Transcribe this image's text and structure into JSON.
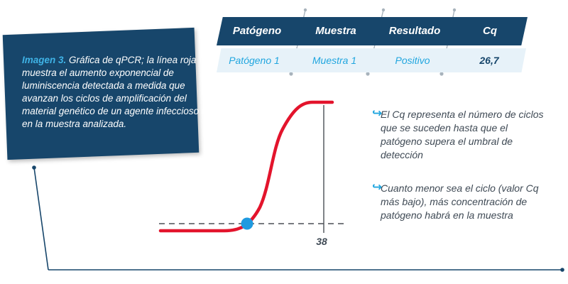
{
  "caption": {
    "label": "Imagen 3.",
    "text": " Gráfica de qPCR; la línea roja muestra el aumento exponencial de luminiscencia detectada a medida que avanzan los ciclos de amplificación del material genético de un agente infeccioso en la muestra analizada."
  },
  "table": {
    "headers": [
      "Patógeno",
      "Muestra",
      "Resultado",
      "Cq"
    ],
    "row": [
      "Patógeno 1",
      "Muestra 1",
      "Positivo",
      "26,7"
    ]
  },
  "notes": [
    "El Cq representa el número de ciclos que se suceden hasta que el patógeno supera el umbral de detección",
    "Cuanto menor sea el ciclo (valor Cq más bajo), más concentración de patógeno habrá en la muestra"
  ],
  "curve": {
    "tick_label": "38",
    "colors": {
      "curve": "#e3142c",
      "point": "#1f9ae0",
      "navy": "#17466b",
      "accent": "#21a6df"
    }
  }
}
